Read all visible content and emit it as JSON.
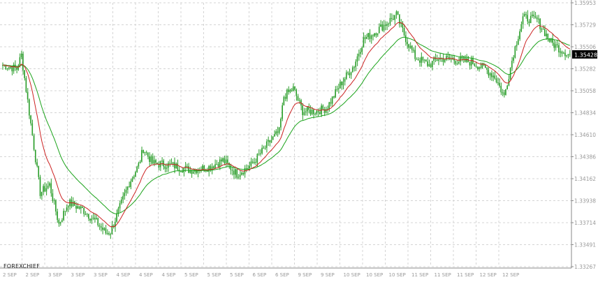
{
  "branding": {
    "watermark": "FOREXCHIEF"
  },
  "chart_data": {
    "type": "candlestick",
    "grid": true,
    "price_axis_position": "right",
    "ylim": [
      1.33267,
      1.35953
    ],
    "price_ticks": [
      "1.35953",
      "1.35729",
      "1.35506",
      "1.35282",
      "1.35058",
      "1.34834",
      "1.34610",
      "1.34386",
      "1.34162",
      "1.33938",
      "1.33714",
      "1.33491",
      "1.33267"
    ],
    "time_ticks": [
      "2 SEP",
      "2 SEP",
      "3 SEP",
      "3 SEP",
      "3 SEP",
      "4 SEP",
      "4 SEP",
      "4 SEP",
      "5 SEP",
      "5 SEP",
      "5 SEP",
      "6 SEP",
      "6 SEP",
      "9 SEP",
      "9 SEP",
      "10 SEP",
      "10 SEP",
      "10 SEP",
      "11 SEP",
      "11 SEP",
      "11 SEP",
      "12 SEP",
      "12 SEP"
    ],
    "current_price": "1.35428",
    "colors": {
      "up": "#2a9d2a",
      "down": "#2a9d2a",
      "ma_fast": "#cc2222",
      "ma_slow": "#1aa31a",
      "grid": "#d4d4d4",
      "price_box": "#000000"
    },
    "close_path": [
      [
        0,
        1.3532
      ],
      [
        3,
        1.3528
      ],
      [
        4,
        1.3542
      ],
      [
        8,
        1.3402
      ],
      [
        10,
        1.341
      ],
      [
        12,
        1.337
      ],
      [
        14,
        1.3392
      ],
      [
        17,
        1.3385
      ],
      [
        20,
        1.3372
      ],
      [
        22,
        1.3361
      ],
      [
        23,
        1.3362
      ],
      [
        27,
        1.3412
      ],
      [
        29,
        1.343
      ],
      [
        30,
        1.3447
      ],
      [
        32,
        1.3432
      ],
      [
        36,
        1.343
      ],
      [
        40,
        1.3425
      ],
      [
        44,
        1.3428
      ],
      [
        47,
        1.3435
      ],
      [
        50,
        1.3421
      ],
      [
        53,
        1.343
      ],
      [
        55,
        1.3442
      ],
      [
        57,
        1.3454
      ],
      [
        59,
        1.3464
      ],
      [
        60,
        1.35
      ],
      [
        62,
        1.3508
      ],
      [
        64,
        1.3485
      ],
      [
        67,
        1.3485
      ],
      [
        69,
        1.3488
      ],
      [
        70,
        1.3495
      ],
      [
        72,
        1.3512
      ],
      [
        75,
        1.3532
      ],
      [
        77,
        1.3558
      ],
      [
        79,
        1.3564
      ],
      [
        82,
        1.3575
      ],
      [
        84,
        1.3583
      ],
      [
        86,
        1.3559
      ],
      [
        88,
        1.354
      ],
      [
        91,
        1.3532
      ],
      [
        93,
        1.3539
      ],
      [
        95,
        1.3538
      ],
      [
        98,
        1.3536
      ],
      [
        100,
        1.3535
      ],
      [
        103,
        1.3528
      ],
      [
        105,
        1.352
      ],
      [
        107,
        1.35
      ],
      [
        109,
        1.3544
      ],
      [
        111,
        1.358
      ],
      [
        114,
        1.3578
      ],
      [
        117,
        1.3555
      ],
      [
        119,
        1.3548
      ],
      [
        121,
        1.3542
      ]
    ]
  }
}
